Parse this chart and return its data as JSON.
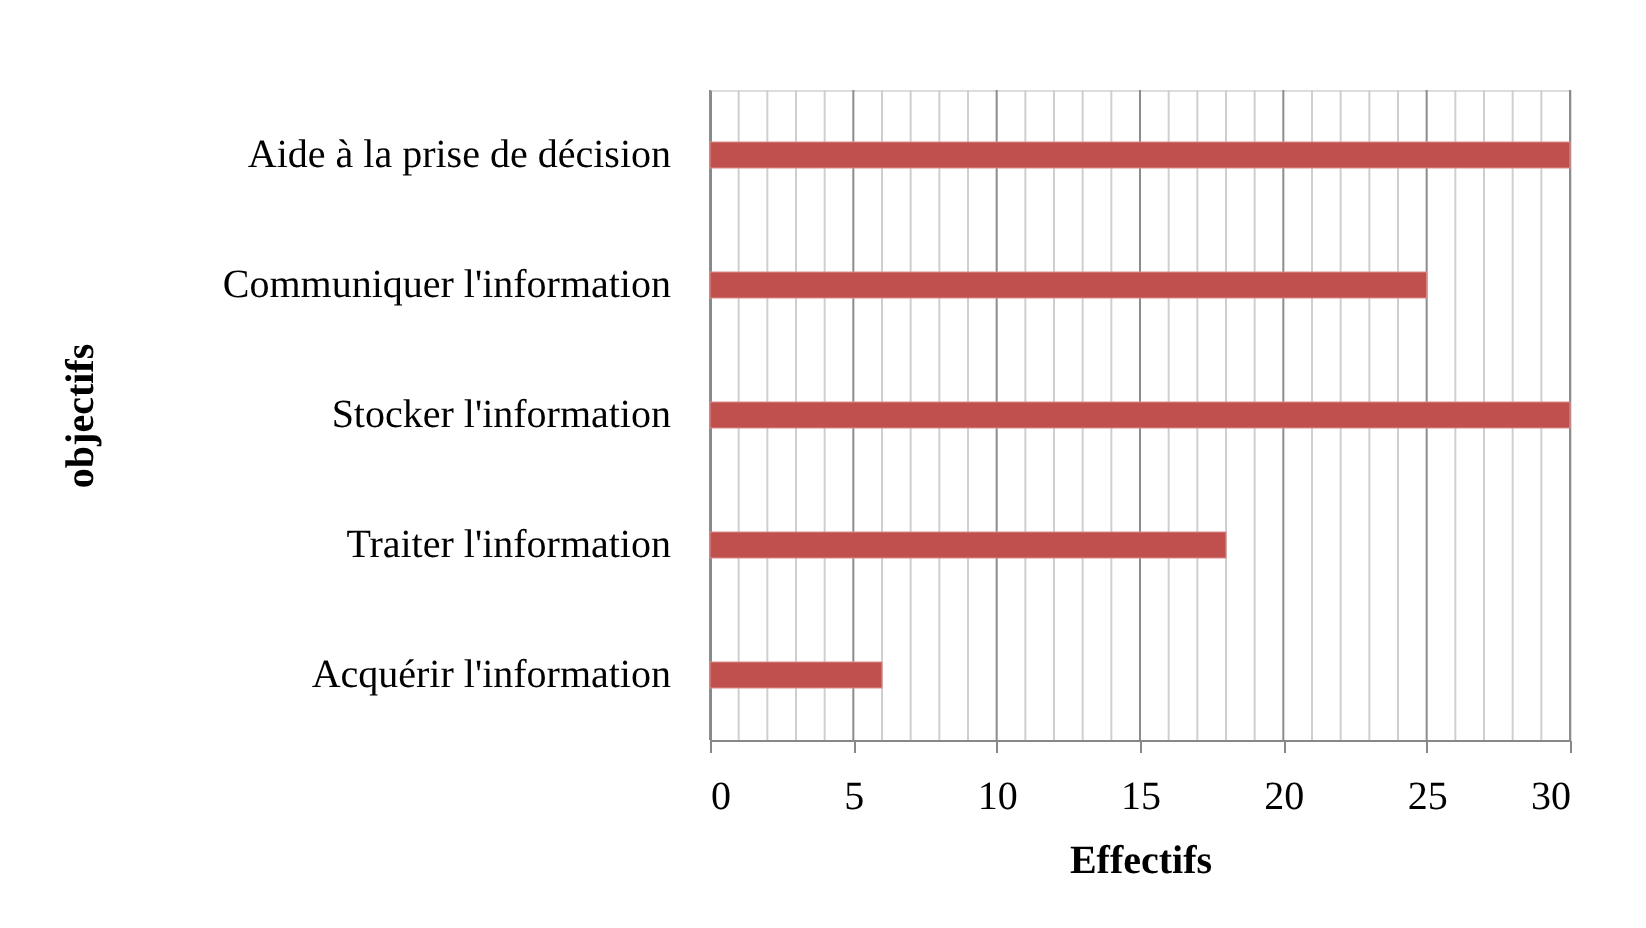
{
  "chart_data": {
    "type": "bar",
    "orientation": "horizontal",
    "xlabel": "Effectifs",
    "ylabel": "objectifs",
    "categories": [
      "Aide à la prise de décision",
      "Communiquer l'information",
      "Stocker l'information",
      "Traiter l'information",
      "Acquérir l'information"
    ],
    "values": [
      30,
      25,
      30,
      18,
      6
    ],
    "color": "#c0504d",
    "xlim": [
      0,
      30
    ],
    "xticks": [
      0,
      {
        "value": 1,
        "label": null
      },
      {
        "value": 2,
        "label": null
      },
      {
        "value": 3,
        "label": null
      },
      {
        "value": 4,
        "label": null
      },
      5,
      {
        "value": 6,
        "label": null
      },
      {
        "value": 7,
        "label": null
      },
      {
        "value": 8,
        "label": null
      },
      {
        "value": 9,
        "label": null
      },
      10,
      {
        "value": 11,
        "label": null
      },
      {
        "value": 12,
        "label": null
      },
      {
        "value": 13,
        "label": null
      },
      {
        "value": 14,
        "label": null
      },
      15,
      {
        "value": 16,
        "label": null
      },
      {
        "value": 17,
        "label": null
      },
      {
        "value": 18,
        "label": null
      },
      {
        "value": 19,
        "label": null
      },
      20,
      {
        "value": 21,
        "label": null
      },
      {
        "value": 22,
        "label": null
      },
      {
        "value": 23,
        "label": null
      },
      {
        "value": 24,
        "label": null
      },
      25,
      {
        "value": 26,
        "label": null
      },
      {
        "value": 27,
        "label": null
      },
      {
        "value": 28,
        "label": null
      },
      {
        "value": 29,
        "label": null
      },
      30
    ],
    "grid": "x"
  }
}
